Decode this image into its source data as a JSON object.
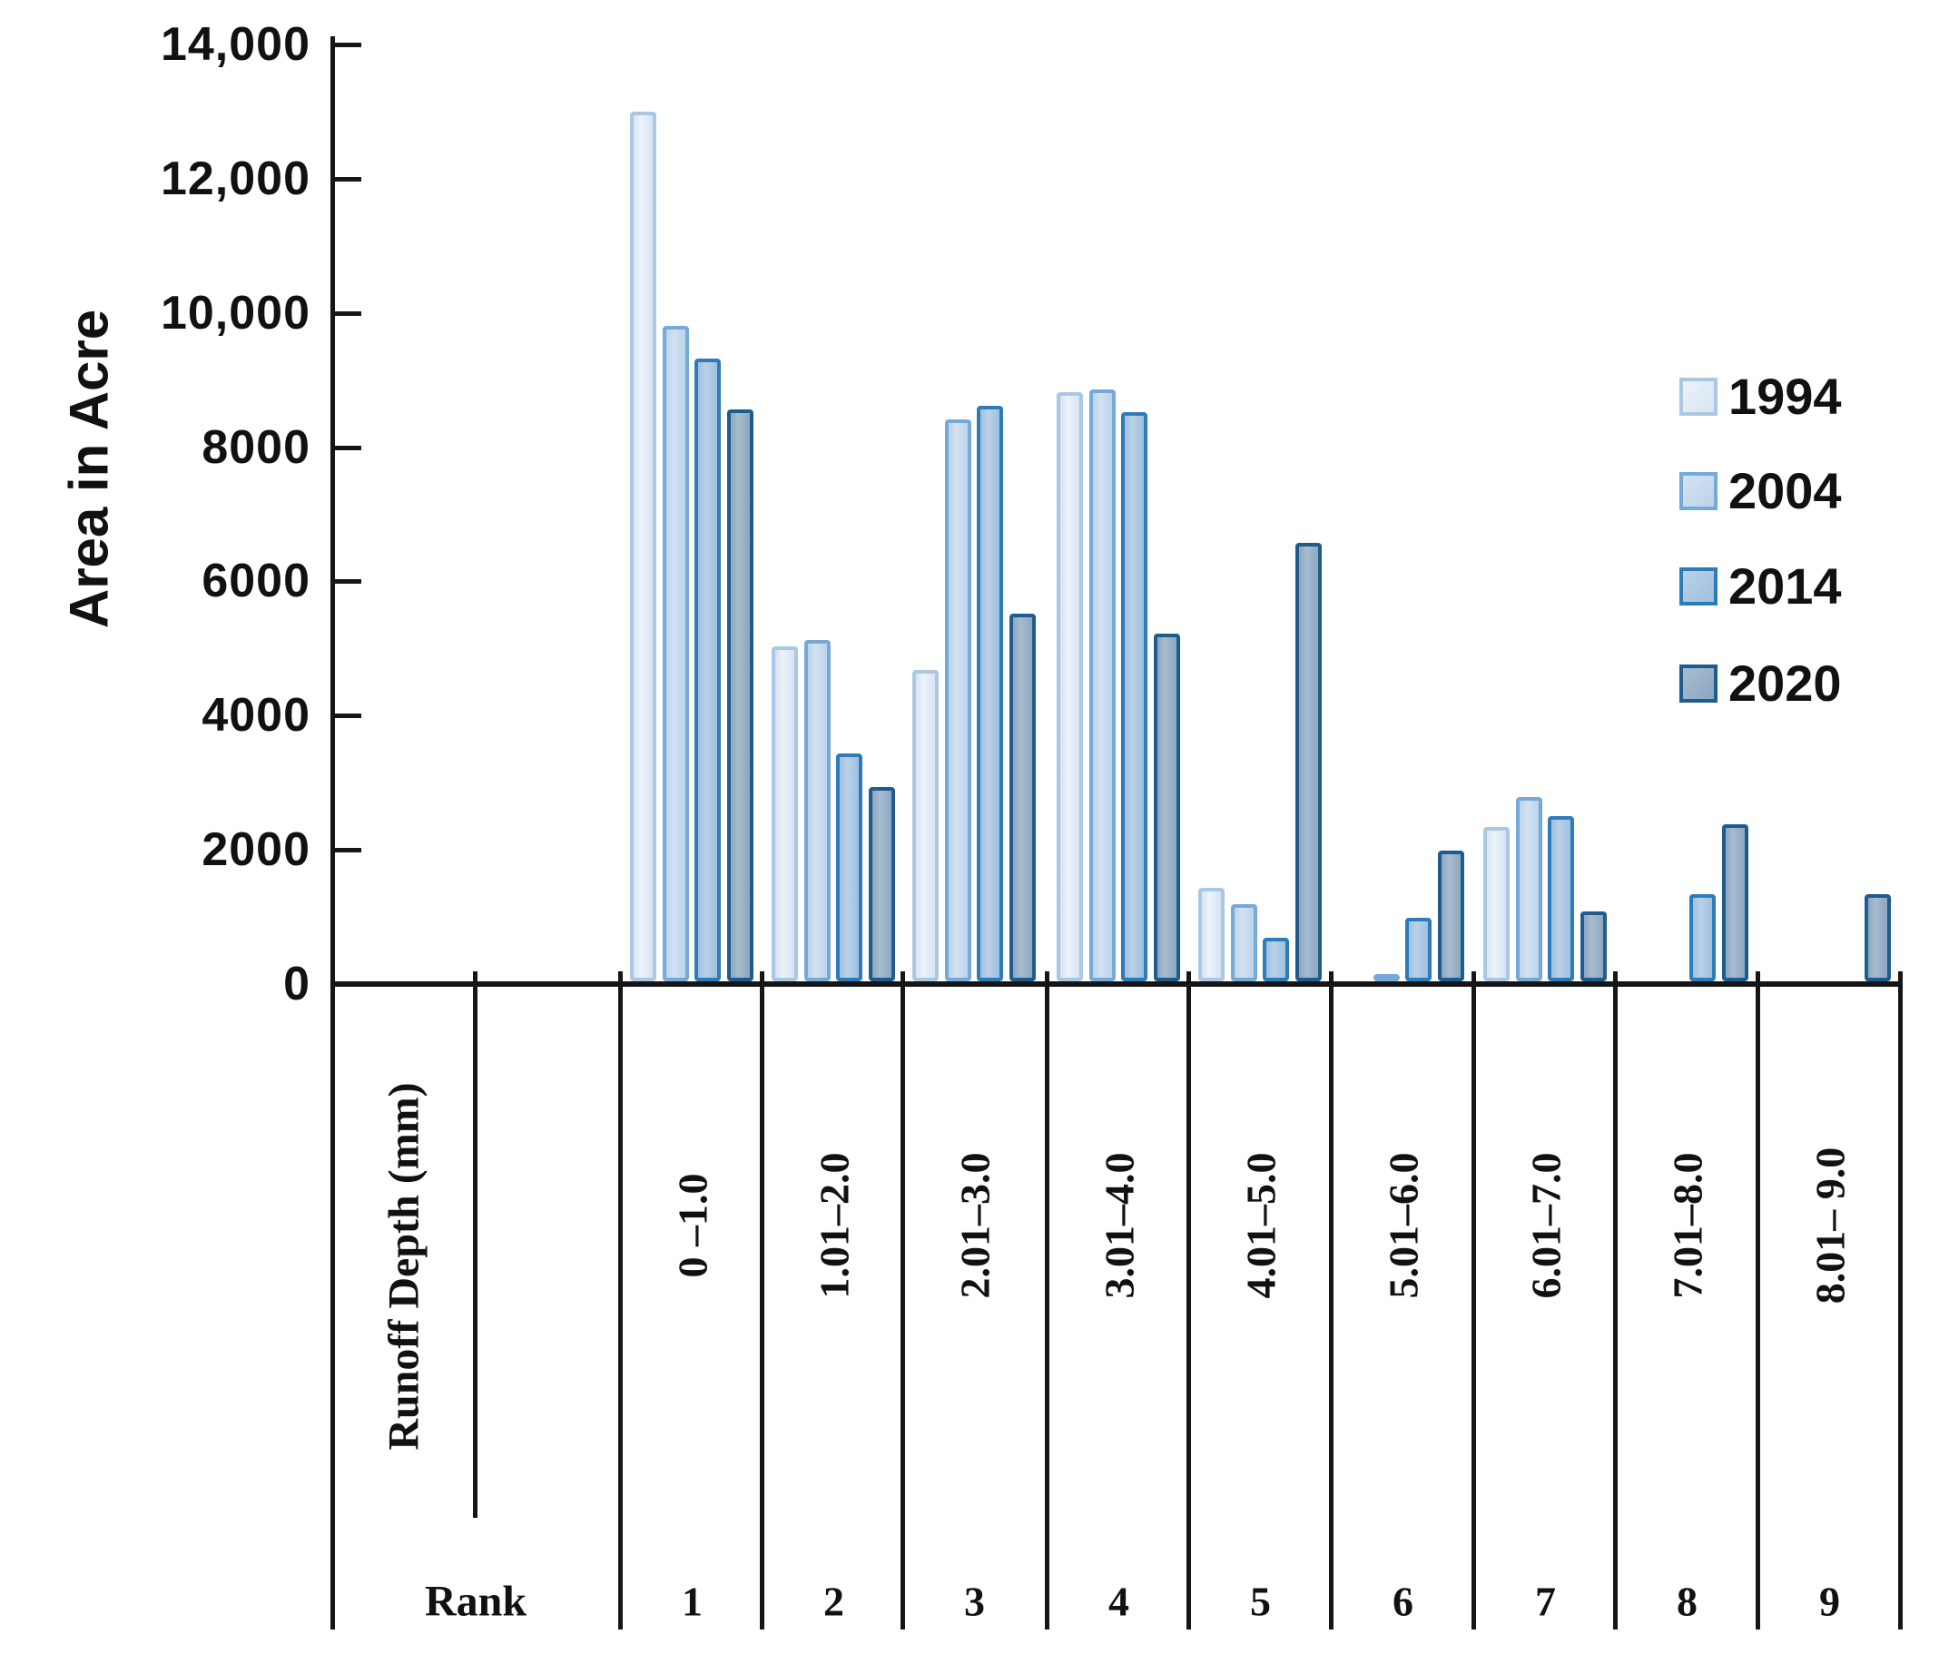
{
  "chart_data": {
    "type": "bar",
    "title": "",
    "ylabel": "Area in Acre",
    "xlabel_header": "Runoff Depth (mm)",
    "rank_header": "Rank",
    "categories": [
      "0 –1.0",
      "1.01–2.0",
      "2.01–3.0",
      "3.01–4.0",
      "4.01–5.0",
      "5.01–6.0",
      "6.01–7.0",
      "7.01–8.0",
      "8.01– 9.0"
    ],
    "ranks": [
      "1",
      "2",
      "3",
      "4",
      "5",
      "6",
      "7",
      "8",
      "9"
    ],
    "y_ticks": [
      "14,000",
      "12,000",
      "10,000",
      "8000",
      "6000",
      "4000",
      "2000",
      "0"
    ],
    "ylim": [
      0,
      14000
    ],
    "grid": "off",
    "legend_position": "upper-right",
    "series": [
      {
        "name": "1994",
        "values": [
          13000,
          5000,
          4650,
          8800,
          1400,
          0,
          2300,
          0,
          0
        ],
        "border": "#aac7e4",
        "fill": "#d7e4f2",
        "fill_light": "#edf3fa"
      },
      {
        "name": "2004",
        "values": [
          9800,
          5100,
          8400,
          8850,
          1150,
          100,
          2750,
          0,
          0
        ],
        "border": "#74a9d8",
        "fill": "#bcd3ea",
        "fill_light": "#d3e2f1"
      },
      {
        "name": "2014",
        "values": [
          9300,
          3400,
          8600,
          8500,
          650,
          950,
          2475,
          1300,
          0
        ],
        "border": "#2e7bba",
        "fill": "#9fc0df",
        "fill_light": "#bad1e7"
      },
      {
        "name": "2020",
        "values": [
          8550,
          2900,
          5500,
          5200,
          6550,
          1950,
          1050,
          2350,
          1300
        ],
        "border": "#1f5c8b",
        "fill": "#8ca7c1",
        "fill_light": "#a7bccf"
      }
    ]
  }
}
